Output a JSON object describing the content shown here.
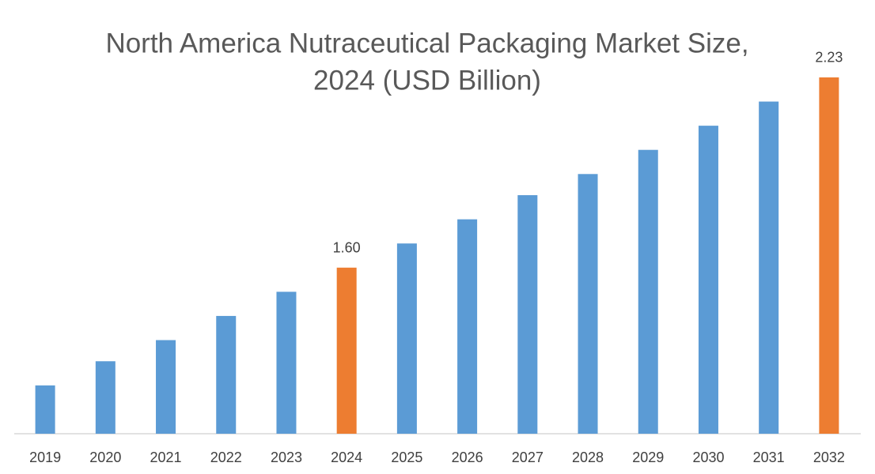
{
  "chart_data": {
    "type": "bar",
    "title": [
      "North America Nutraceutical Packaging Market Size,",
      "2024 (USD Billion)"
    ],
    "categories": [
      "2019",
      "2020",
      "2021",
      "2022",
      "2023",
      "2024",
      "2025",
      "2026",
      "2027",
      "2028",
      "2029",
      "2030",
      "2031",
      "2032"
    ],
    "values": [
      1.21,
      1.29,
      1.36,
      1.44,
      1.52,
      1.6,
      1.68,
      1.76,
      1.84,
      1.91,
      1.99,
      2.07,
      2.15,
      2.23
    ],
    "value_labels": [
      null,
      null,
      null,
      null,
      null,
      "1.60",
      null,
      null,
      null,
      null,
      null,
      null,
      null,
      "2.23"
    ],
    "colors": [
      "#5b9bd5",
      "#5b9bd5",
      "#5b9bd5",
      "#5b9bd5",
      "#5b9bd5",
      "#ed7d31",
      "#5b9bd5",
      "#5b9bd5",
      "#5b9bd5",
      "#5b9bd5",
      "#5b9bd5",
      "#5b9bd5",
      "#5b9bd5",
      "#ed7d31"
    ],
    "ylim": [
      1.05,
      2.4
    ]
  }
}
